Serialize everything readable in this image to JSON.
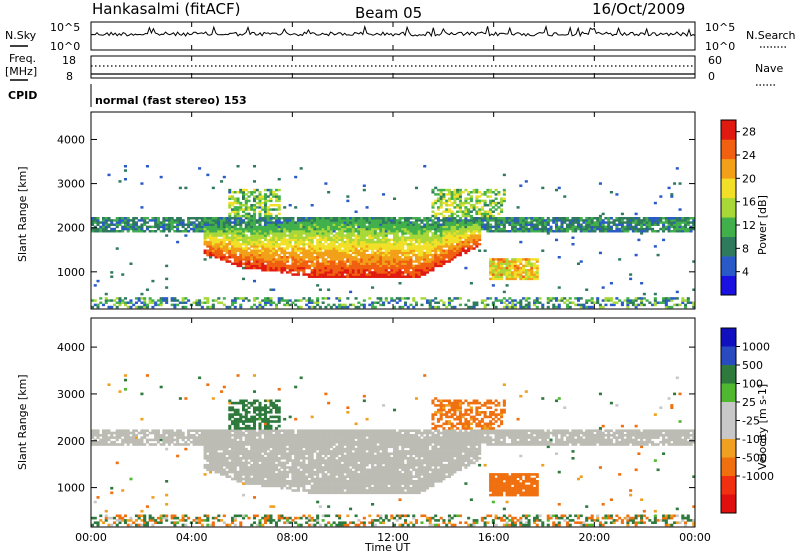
{
  "header": {
    "radar": "Hankasalmi (fitACF)",
    "beam": "Beam 05",
    "date": "16/Oct/2009"
  },
  "top_panels": {
    "nsky_label": "N.Sky",
    "nsky_ticks": [
      "10^5",
      "10^0"
    ],
    "nsearch_label": "N.Search",
    "nsearch_ticks": [
      "10^5",
      "10^0"
    ],
    "freq_label": "Freq.",
    "freq_unit": "[MHz]",
    "freq_ticks": [
      "18",
      "8"
    ],
    "nave_label": "Nave",
    "nave_ticks": [
      "60",
      "0"
    ],
    "cpid_label": "CPID",
    "cpid_text": "normal (fast stereo) 153"
  },
  "colors": {
    "power": [
      "#1a10e0",
      "#2a5ac8",
      "#2e7a5c",
      "#42b04a",
      "#a8d838",
      "#f2e028",
      "#f2a018",
      "#f06010",
      "#e01a10"
    ],
    "velocity": [
      "#1010c0",
      "#2a4ac0",
      "#2e7a3c",
      "#50b830",
      "#c8c8c8",
      "#c8c8c8",
      "#f0a020",
      "#f07010",
      "#f03010",
      "#e01010"
    ],
    "ground_scatter": "#bcbcb4"
  },
  "chart_data": [
    {
      "type": "heatmap",
      "title": "",
      "xlabel": "Time UT",
      "ylabel": "Slant Range [km]",
      "x_ticks": [
        "00:00",
        "04:00",
        "08:00",
        "12:00",
        "16:00",
        "20:00",
        "00:00"
      ],
      "xlim_hours": [
        0,
        24
      ],
      "y_ticks": [
        "1000",
        "2000",
        "3000",
        "4000"
      ],
      "ylim_km": [
        180,
        4600
      ],
      "colorbar": {
        "label": "Power [dB]",
        "ticks": [
          "4",
          "8",
          "12",
          "16",
          "20",
          "24",
          "28"
        ],
        "range": [
          0,
          30
        ]
      },
      "features": [
        {
          "t_start": 0,
          "t_end": 24,
          "range_center_km": 2000,
          "note": "persistent scatter band ~2000 km"
        },
        {
          "t_start": 6,
          "t_end": 15,
          "range_center_km": 1100,
          "peak_db": 28
        },
        {
          "t_start": 16.5,
          "t_end": 17.5,
          "range_center_km": 1000,
          "peak_db": 24
        }
      ]
    },
    {
      "type": "heatmap",
      "title": "",
      "xlabel": "Time UT",
      "ylabel": "Slant Range [km]",
      "x_ticks": [
        "00:00",
        "04:00",
        "08:00",
        "12:00",
        "16:00",
        "20:00",
        "00:00"
      ],
      "xlim_hours": [
        0,
        24
      ],
      "y_ticks": [
        "1000",
        "2000",
        "3000",
        "4000"
      ],
      "ylim_km": [
        180,
        4600
      ],
      "colorbar": {
        "label": "Velocity [m s-1]",
        "ticks": [
          "1000",
          "500",
          "100",
          "25",
          "-25",
          "-100",
          "-500",
          "-1000"
        ],
        "range": [
          -1000,
          1000
        ]
      },
      "features": [
        {
          "t_start": 0,
          "t_end": 24,
          "range_center_km": 2000,
          "note": "mostly ground scatter (grey)"
        },
        {
          "t_start": 13.5,
          "t_end": 16.5,
          "range_center_km": 2500,
          "note": "negative velocity (orange)"
        }
      ]
    }
  ]
}
